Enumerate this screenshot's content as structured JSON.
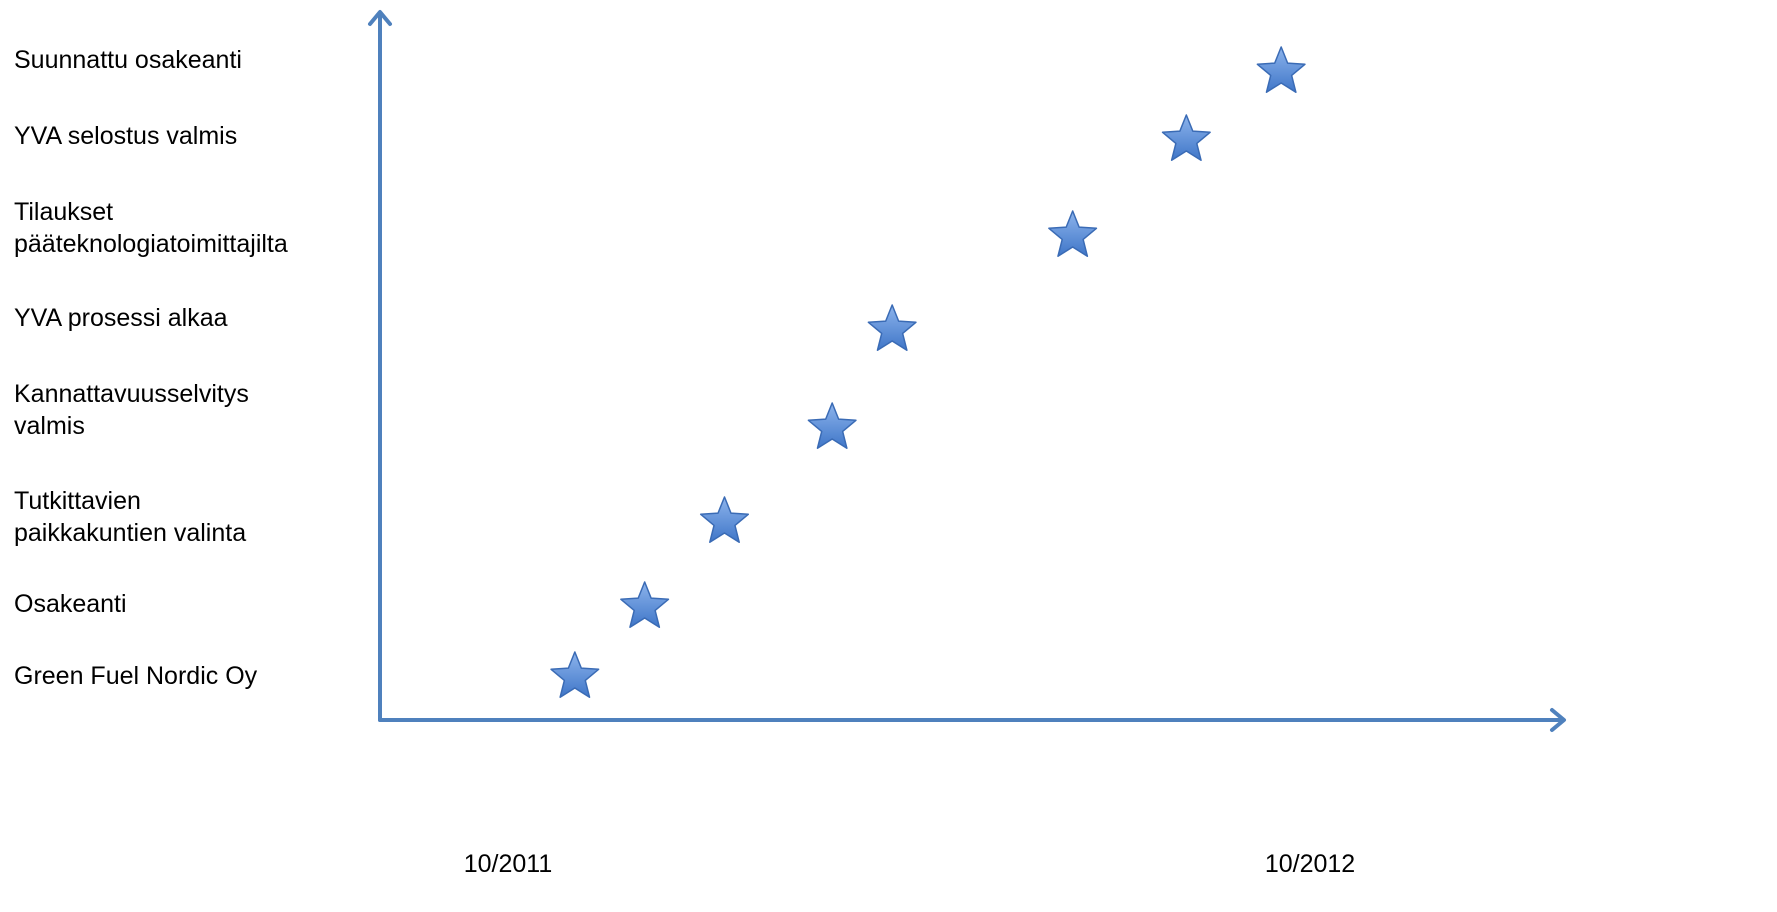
{
  "colors": {
    "axis": "#4f81bd",
    "star_fill": "#5b8fd8",
    "star_stroke": "#3a6bb5",
    "text": "#000000"
  },
  "chart_data": {
    "type": "scatter",
    "title": "",
    "xlabel": "",
    "ylabel": "",
    "marker": "star-icon",
    "grid": false,
    "legend": "none",
    "x_tick_labels": [
      "10/2011",
      "10/2012"
    ],
    "milestones": [
      {
        "label": "Green Fuel Nordic Oy",
        "date": "2011-11"
      },
      {
        "label": "Osakeanti",
        "date": "2011-12"
      },
      {
        "label": "Tutkittavien\npaikkakuntien valinta",
        "date": "2012-01"
      },
      {
        "label": "Kannattavuusselvitys\nvalmis",
        "date": "2012-03"
      },
      {
        "label": "YVA prosessi alkaa",
        "date": "2012-03"
      },
      {
        "label": "Tilaukset\npääteknologiatoimittajilta",
        "date": "2012-06"
      },
      {
        "label": "YVA selostus valmis",
        "date": "2012-08"
      },
      {
        "label": "Suunnattu osakeanti",
        "date": "2012-09"
      }
    ]
  }
}
